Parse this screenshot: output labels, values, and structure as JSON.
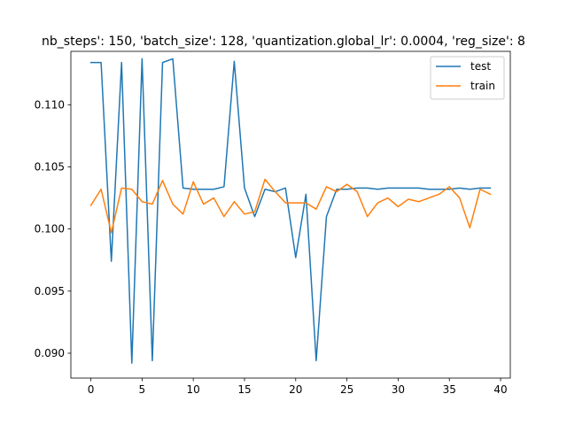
{
  "chart_data": {
    "type": "line",
    "title": "nb_steps': 150, 'batch_size': 128, 'quantization.global_lr': 0.0004, 'reg_size': 8",
    "xlabel": "",
    "ylabel": "",
    "xlim": [
      -1.95,
      40.95
    ],
    "ylim": [
      0.088,
      0.1143
    ],
    "xticks": [
      0,
      5,
      10,
      15,
      20,
      25,
      30,
      35,
      40
    ],
    "xtick_labels": [
      "0",
      "5",
      "10",
      "15",
      "20",
      "25",
      "30",
      "35",
      "40"
    ],
    "yticks": [
      0.09,
      0.095,
      0.1,
      0.105,
      0.11
    ],
    "ytick_labels": [
      "0.090",
      "0.095",
      "0.100",
      "0.105",
      "0.110"
    ],
    "legend_position": "top-right",
    "grid": false,
    "x": [
      0,
      1,
      2,
      3,
      4,
      5,
      6,
      7,
      8,
      9,
      10,
      11,
      12,
      13,
      14,
      15,
      16,
      17,
      18,
      19,
      20,
      21,
      22,
      23,
      24,
      25,
      26,
      27,
      28,
      29,
      30,
      31,
      32,
      33,
      34,
      35,
      36,
      37,
      38,
      39
    ],
    "series": [
      {
        "name": "test",
        "color": "#1f77b4",
        "values": [
          0.1134,
          0.1134,
          0.0974,
          0.1134,
          0.0892,
          0.1137,
          0.0894,
          0.1134,
          0.1137,
          0.1033,
          0.1032,
          0.1032,
          0.1032,
          0.1034,
          0.1135,
          0.1033,
          0.101,
          0.1032,
          0.103,
          0.1033,
          0.0977,
          0.1028,
          0.0894,
          0.101,
          0.1032,
          0.1032,
          0.1033,
          0.1033,
          0.1032,
          0.1033,
          0.1033,
          0.1033,
          0.1033,
          0.1032,
          0.1032,
          0.1032,
          0.1033,
          0.1032,
          0.1033,
          0.1033
        ]
      },
      {
        "name": "train",
        "color": "#ff7f0e",
        "values": [
          0.1019,
          0.1032,
          0.0997,
          0.1033,
          0.1032,
          0.1022,
          0.102,
          0.1039,
          0.102,
          0.1012,
          0.1038,
          0.102,
          0.1025,
          0.101,
          0.1022,
          0.1012,
          0.1014,
          0.104,
          0.103,
          0.1021,
          0.1021,
          0.1021,
          0.1016,
          0.1034,
          0.103,
          0.1036,
          0.103,
          0.101,
          0.1021,
          0.1025,
          0.1018,
          0.1024,
          0.1022,
          0.1025,
          0.1028,
          0.1034,
          0.1025,
          0.1001,
          0.1032,
          0.1028
        ]
      }
    ]
  }
}
